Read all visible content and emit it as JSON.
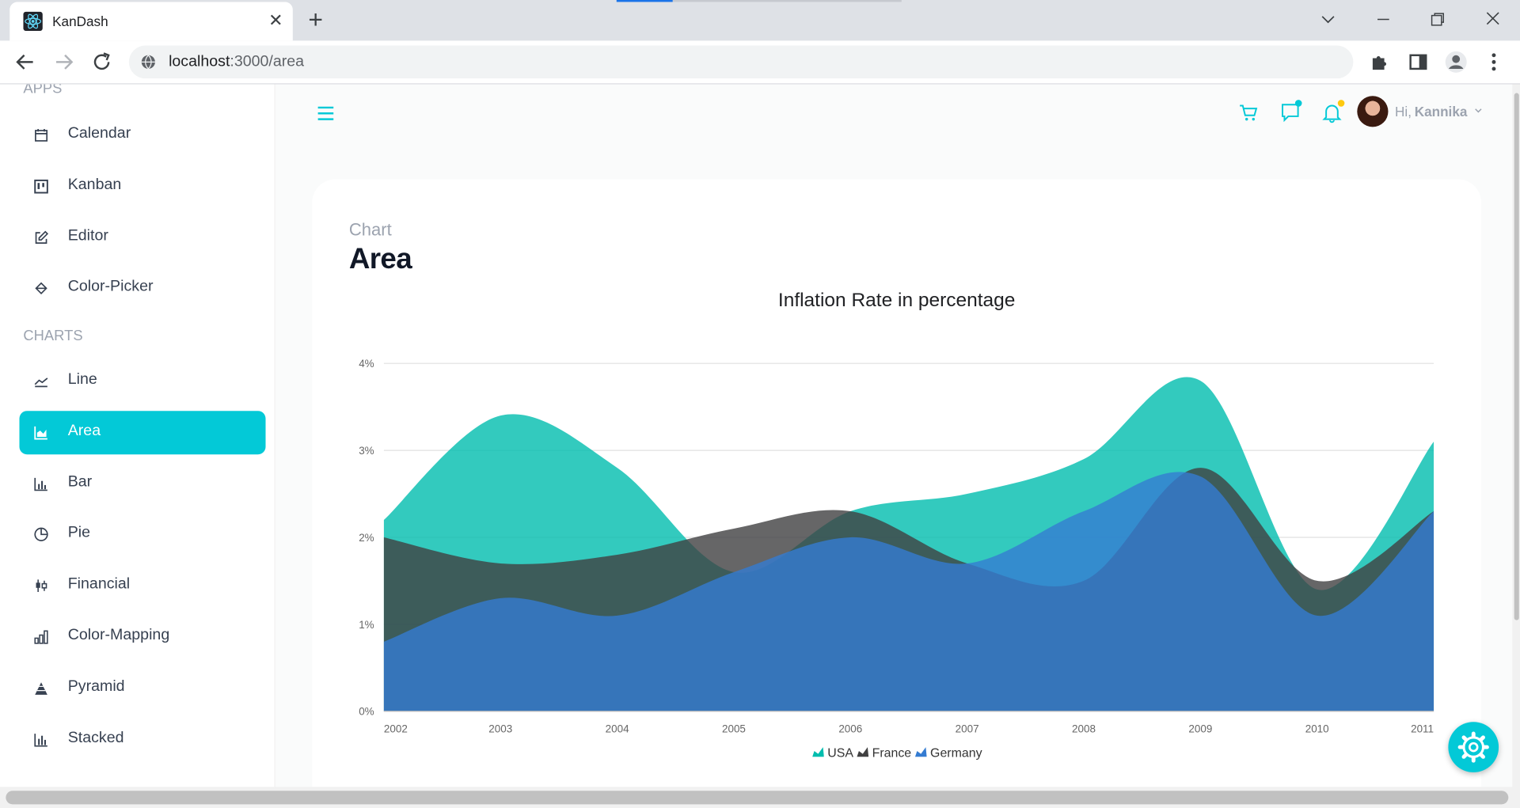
{
  "browser": {
    "tab_title": "KanDash",
    "url_host": "localhost",
    "url_rest": ":3000/area"
  },
  "sidebar": {
    "section_apps": "APPS",
    "section_charts": "CHARTS",
    "apps": [
      {
        "label": "Calendar",
        "icon": "calendar-icon"
      },
      {
        "label": "Kanban",
        "icon": "kanban-icon"
      },
      {
        "label": "Editor",
        "icon": "edit-icon"
      },
      {
        "label": "Color-Picker",
        "icon": "paint-bucket-icon"
      }
    ],
    "charts": [
      {
        "label": "Line",
        "icon": "line-chart-icon"
      },
      {
        "label": "Area",
        "icon": "area-chart-icon",
        "active": true
      },
      {
        "label": "Bar",
        "icon": "bar-chart-icon"
      },
      {
        "label": "Pie",
        "icon": "pie-chart-icon"
      },
      {
        "label": "Financial",
        "icon": "candlestick-icon"
      },
      {
        "label": "Color-Mapping",
        "icon": "color-mapping-icon"
      },
      {
        "label": "Pyramid",
        "icon": "pyramid-icon"
      },
      {
        "label": "Stacked",
        "icon": "stacked-chart-icon"
      }
    ]
  },
  "navbar": {
    "greeting": "Hi,",
    "user_name": "Kannika"
  },
  "page": {
    "category": "Chart",
    "title": "Area"
  },
  "theme": {
    "accent": "#03c9d7"
  },
  "chart_data": {
    "type": "area",
    "title": "Inflation Rate in percentage",
    "x": [
      "2002",
      "2003",
      "2004",
      "2005",
      "2006",
      "2007",
      "2008",
      "2009",
      "2010",
      "2011"
    ],
    "ylim": [
      0,
      4
    ],
    "yticks": [
      "0%",
      "1%",
      "2%",
      "3%",
      "4%"
    ],
    "grid": true,
    "legend_position": "bottom",
    "series": [
      {
        "name": "USA",
        "color": "#00bdae",
        "values": [
          2.2,
          3.4,
          2.8,
          1.6,
          2.3,
          2.5,
          2.9,
          3.8,
          1.4,
          3.1
        ]
      },
      {
        "name": "France",
        "color": "#404041",
        "values": [
          2.0,
          1.7,
          1.8,
          2.1,
          2.3,
          1.7,
          1.5,
          2.8,
          1.5,
          2.3
        ]
      },
      {
        "name": "Germany",
        "color": "#357cd2",
        "values": [
          0.8,
          1.3,
          1.1,
          1.6,
          2.0,
          1.7,
          2.3,
          2.7,
          1.1,
          2.3
        ]
      }
    ]
  }
}
